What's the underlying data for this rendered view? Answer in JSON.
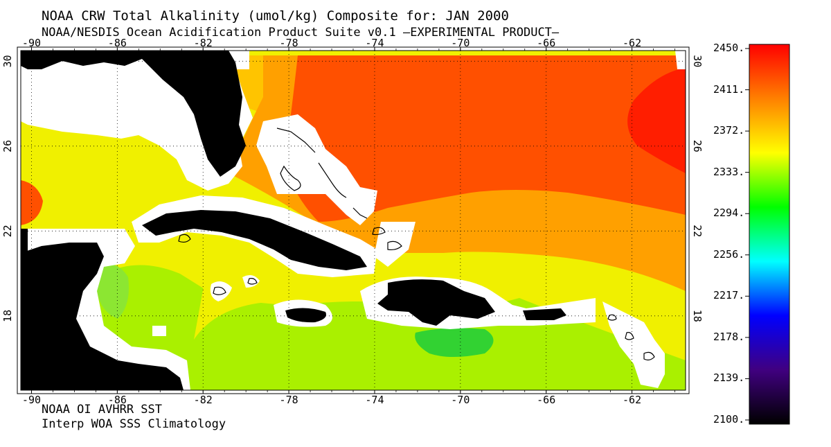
{
  "title": "NOAA CRW Total Alkalinity (umol/kg) Composite for: JAN 2000",
  "subtitle": "NOAA/NESDIS Ocean Acidification Product Suite  v0.1 –EXPERIMENTAL PRODUCT–",
  "footer_lines": [
    "NOAA OI AVHRR SST",
    "Interp WOA SSS Climatology"
  ],
  "map": {
    "lon_range": [
      -90.5,
      -59.5
    ],
    "lat_range": [
      14.5,
      30.5
    ],
    "lon_ticks": [
      "-90",
      "-86",
      "-82",
      "-78",
      "-74",
      "-70",
      "-66",
      "-62"
    ],
    "lat_ticks": [
      "30",
      "26",
      "22",
      "18"
    ],
    "grid": "dotted",
    "land_color": "#000000",
    "mask_color": "#ffffff"
  },
  "colorbar": {
    "labels": [
      "2450.",
      "2411.",
      "2372.",
      "2333.",
      "2294.",
      "2256.",
      "2217.",
      "2178.",
      "2139.",
      "2100."
    ],
    "colors": [
      "#ff0000",
      "#ff8000",
      "#ffff00",
      "#00ff00",
      "#00ffff",
      "#0000ff",
      "#400080",
      "#000000"
    ]
  },
  "field_colors": {
    "green": "#32d232",
    "light_green": "#8ce632",
    "yellow_green": "#aaf000",
    "yellow": "#f0f000",
    "light_orange": "#ffc400",
    "orange": "#ffa000",
    "dark_orange": "#ff5000",
    "red": "#ff1e00"
  }
}
